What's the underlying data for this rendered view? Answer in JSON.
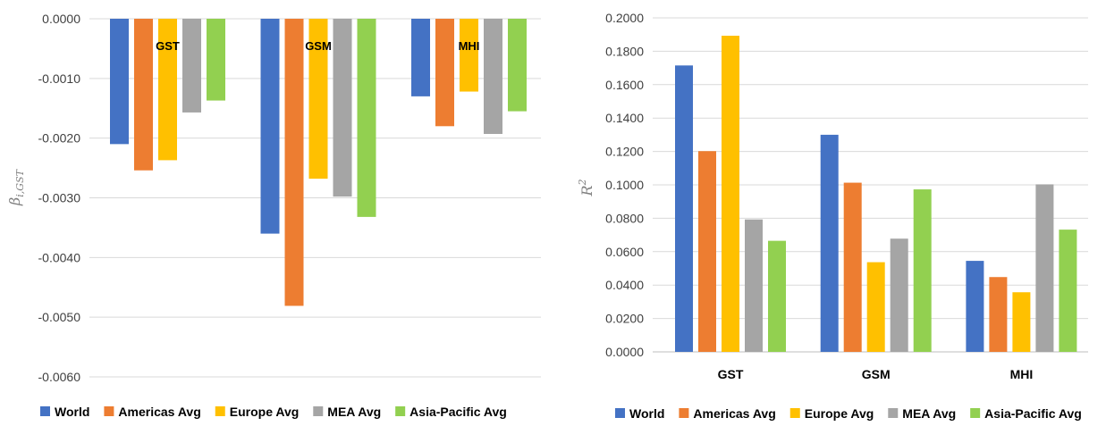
{
  "chart_data": [
    {
      "type": "bar",
      "categories": [
        "GST",
        "GSM",
        "MHI"
      ],
      "series": [
        {
          "name": "World",
          "values": [
            -0.0021,
            -0.0036,
            -0.0013
          ]
        },
        {
          "name": "Americas Avg",
          "values": [
            -0.00254,
            -0.00481,
            -0.0018
          ]
        },
        {
          "name": "Europe Avg",
          "values": [
            -0.00237,
            -0.00268,
            -0.00122
          ]
        },
        {
          "name": "MEA Avg",
          "values": [
            -0.00157,
            -0.00298,
            -0.00193
          ]
        },
        {
          "name": "Asia-Pacific Avg",
          "values": [
            -0.00137,
            -0.00332,
            -0.00155
          ]
        }
      ],
      "ylim": [
        -0.006,
        0
      ],
      "yticks": [
        "0.0000",
        "-0.0010",
        "-0.0020",
        "-0.0030",
        "-0.0040",
        "-0.0050",
        "-0.0060"
      ],
      "ylabel": {
        "main": "β",
        "sub": "i,GST"
      },
      "xlabel": "",
      "title": "",
      "grid": true,
      "legend": "bottom",
      "category_label_position": "inside-top"
    },
    {
      "type": "bar",
      "categories": [
        "GST",
        "GSM",
        "MHI"
      ],
      "series": [
        {
          "name": "World",
          "values": [
            0.1715,
            0.13,
            0.0545
          ]
        },
        {
          "name": "Americas Avg",
          "values": [
            0.1202,
            0.1013,
            0.0448
          ]
        },
        {
          "name": "Europe Avg",
          "values": [
            0.1893,
            0.0537,
            0.0357
          ]
        },
        {
          "name": "MEA Avg",
          "values": [
            0.0793,
            0.0678,
            0.1003
          ]
        },
        {
          "name": "Asia-Pacific Avg",
          "values": [
            0.0665,
            0.0973,
            0.0732
          ]
        }
      ],
      "ylim": [
        0,
        0.2
      ],
      "yticks": [
        "0.0000",
        "0.0200",
        "0.0400",
        "0.0600",
        "0.0800",
        "0.1000",
        "0.1200",
        "0.1400",
        "0.1600",
        "0.1800",
        "0.2000"
      ],
      "ylabel": {
        "main": "R",
        "sup": "2"
      },
      "xlabel": "",
      "title": "",
      "grid": true,
      "legend": "bottom",
      "category_label_position": "below-axis"
    }
  ],
  "colors": [
    "#4472C4",
    "#ED7D31",
    "#FFC000",
    "#A5A5A5",
    "#92D050"
  ]
}
